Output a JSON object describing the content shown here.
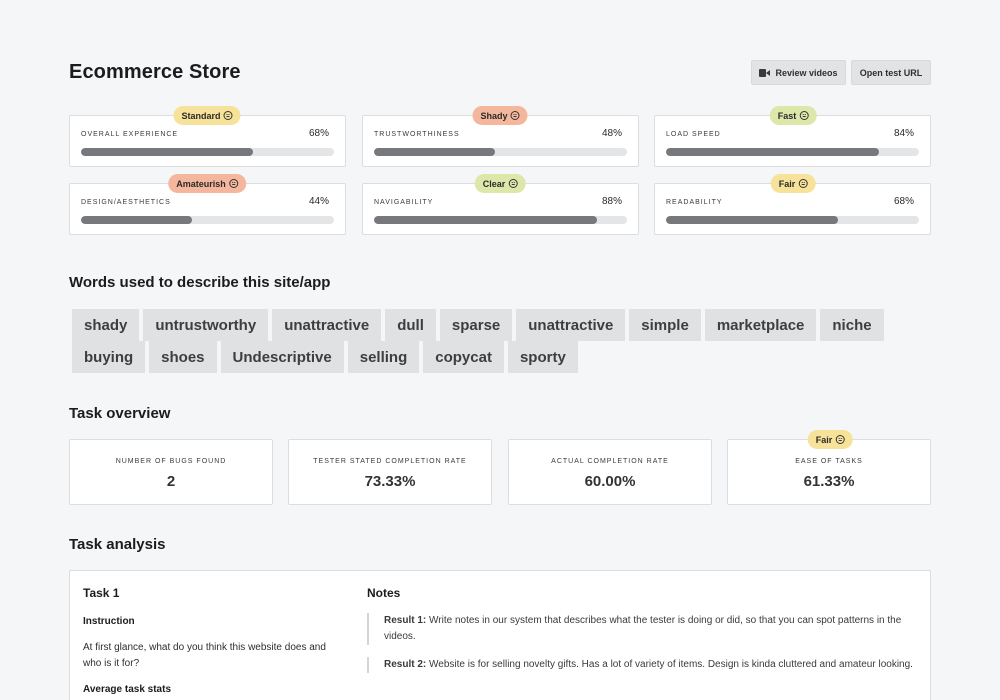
{
  "header": {
    "title": "Ecommerce Store",
    "review_label": "Review videos",
    "open_label": "Open test URL"
  },
  "metrics": [
    {
      "label": "OVERALL EXPERIENCE",
      "value": "68%",
      "progress": 0.68,
      "badge": "Standard",
      "badge_color": "#f7e29a"
    },
    {
      "label": "TRUSTWORTHINESS",
      "value": "48%",
      "progress": 0.48,
      "badge": "Shady",
      "badge_color": "#f4b79d"
    },
    {
      "label": "LOAD SPEED",
      "value": "84%",
      "progress": 0.84,
      "badge": "Fast",
      "badge_color": "#dde7aa"
    },
    {
      "label": "DESIGN/AESTHETICS",
      "value": "44%",
      "progress": 0.44,
      "badge": "Amateurish",
      "badge_color": "#f4b79d"
    },
    {
      "label": "NAVIGABILITY",
      "value": "88%",
      "progress": 0.88,
      "badge": "Clear",
      "badge_color": "#dde7aa"
    },
    {
      "label": "READABILITY",
      "value": "68%",
      "progress": 0.68,
      "badge": "Fair",
      "badge_color": "#f7e29a"
    }
  ],
  "words_section": {
    "title": "Words used to describe this site/app",
    "words": [
      "shady",
      "untrustworthy",
      "unattractive",
      "dull",
      "sparse",
      "unattractive",
      "simple",
      "marketplace",
      "niche",
      "buying",
      "shoes",
      "Undescriptive",
      "selling",
      "copycat",
      "sporty"
    ]
  },
  "task_overview": {
    "title": "Task overview",
    "cards": [
      {
        "label": "NUMBER OF BUGS FOUND",
        "value": "2"
      },
      {
        "label": "TESTER STATED COMPLETION RATE",
        "value": "73.33%"
      },
      {
        "label": "ACTUAL COMPLETION RATE",
        "value": "60.00%"
      },
      {
        "label": "EASE OF TASKS",
        "value": "61.33%",
        "badge": "Fair",
        "badge_color": "#f7e29a"
      }
    ]
  },
  "task_analysis": {
    "title": "Task analysis",
    "task_name": "Task 1",
    "instruction_heading": "Instruction",
    "instruction_text": "At first glance, what do you think this website does and who is it for?",
    "stats_heading": "Average task stats",
    "notes_heading": "Notes",
    "notes": [
      {
        "label": "Result 1:",
        "text": "Write notes in our system that describes what the tester is doing or did, so that you can spot patterns in the videos."
      },
      {
        "label": "Result 2:",
        "text": "Website is for selling novelty gifts. Has a lot of variety of items. Design is kinda cluttered and amateur looking."
      }
    ]
  }
}
